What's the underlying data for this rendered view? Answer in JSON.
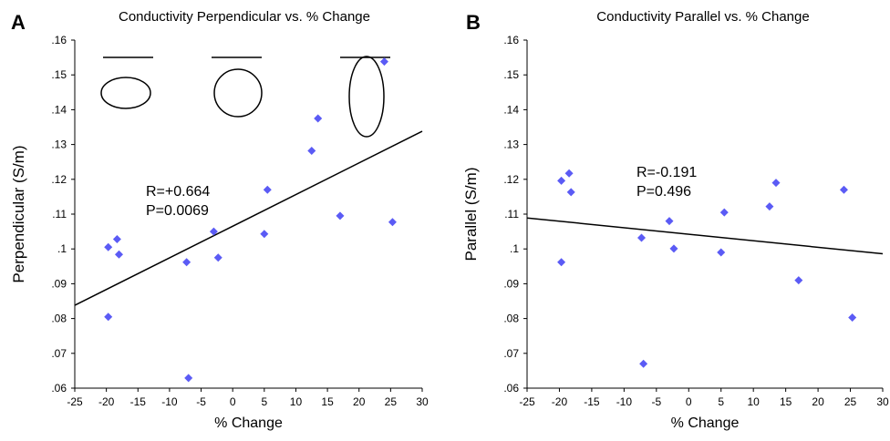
{
  "chart_data": [
    {
      "type": "scatter",
      "panel": "A",
      "title": "Conductivity Perpendicular vs. % Change",
      "xlabel": "% Change",
      "ylabel": "Perpendicular (S/m)",
      "xlim": [
        -25,
        30
      ],
      "ylim": [
        0.06,
        0.16
      ],
      "xticks": [
        -25,
        -20,
        -15,
        -10,
        -5,
        0,
        5,
        10,
        15,
        20,
        25,
        30
      ],
      "xtick_labels": [
        "-25",
        "-20",
        "-15",
        "-10",
        "-5",
        "0",
        "5",
        "10",
        "15",
        "20",
        "25",
        "30"
      ],
      "yticks": [
        0.06,
        0.07,
        0.08,
        0.09,
        0.1,
        0.11,
        0.12,
        0.13,
        0.14,
        0.15,
        0.16
      ],
      "ytick_labels": [
        ".06",
        ".07",
        ".08",
        ".09",
        ".1",
        ".11",
        ".12",
        ".13",
        ".14",
        ".15",
        ".16"
      ],
      "grid": false,
      "points": [
        {
          "x": -19.7,
          "y": 0.1005
        },
        {
          "x": -18.3,
          "y": 0.1028
        },
        {
          "x": -18.0,
          "y": 0.0984
        },
        {
          "x": -19.7,
          "y": 0.0805
        },
        {
          "x": -7.3,
          "y": 0.0962
        },
        {
          "x": -7.0,
          "y": 0.0629
        },
        {
          "x": -3.0,
          "y": 0.105
        },
        {
          "x": -2.3,
          "y": 0.0975
        },
        {
          "x": 5.0,
          "y": 0.1043
        },
        {
          "x": 5.5,
          "y": 0.117
        },
        {
          "x": 12.5,
          "y": 0.1282
        },
        {
          "x": 13.5,
          "y": 0.1375
        },
        {
          "x": 17.0,
          "y": 0.1095
        },
        {
          "x": 24.0,
          "y": 0.1538
        },
        {
          "x": 25.3,
          "y": 0.1077
        }
      ],
      "fit_line": {
        "x": [
          -25,
          30
        ],
        "y": [
          0.0838,
          0.1338
        ]
      },
      "annotations": [
        "R=+0.664",
        "P=0.0069"
      ],
      "point_color": "#5b5bf5"
    },
    {
      "type": "scatter",
      "panel": "B",
      "title": "Conductivity Parallel vs. % Change",
      "xlabel": "% Change",
      "ylabel": "Parallel (S/m)",
      "xlim": [
        -25,
        30
      ],
      "ylim": [
        0.06,
        0.16
      ],
      "xticks": [
        -25,
        -20,
        -15,
        -10,
        -5,
        0,
        5,
        10,
        15,
        20,
        25,
        30
      ],
      "xtick_labels": [
        "-25",
        "-20",
        "-15",
        "-10",
        "-5",
        "0",
        "5",
        "10",
        "15",
        "20",
        "25",
        "30"
      ],
      "yticks": [
        0.06,
        0.07,
        0.08,
        0.09,
        0.1,
        0.11,
        0.12,
        0.13,
        0.14,
        0.15,
        0.16
      ],
      "ytick_labels": [
        ".06",
        ".07",
        ".08",
        ".09",
        ".1",
        ".11",
        ".12",
        ".13",
        ".14",
        ".15",
        ".16"
      ],
      "grid": false,
      "points": [
        {
          "x": -19.7,
          "y": 0.1196
        },
        {
          "x": -18.5,
          "y": 0.1217
        },
        {
          "x": -18.2,
          "y": 0.1163
        },
        {
          "x": -19.7,
          "y": 0.0962
        },
        {
          "x": -7.3,
          "y": 0.1032
        },
        {
          "x": -7.0,
          "y": 0.067
        },
        {
          "x": -3.0,
          "y": 0.108
        },
        {
          "x": -2.3,
          "y": 0.1001
        },
        {
          "x": 5.0,
          "y": 0.099
        },
        {
          "x": 5.5,
          "y": 0.1105
        },
        {
          "x": 12.5,
          "y": 0.1122
        },
        {
          "x": 13.5,
          "y": 0.119
        },
        {
          "x": 17.0,
          "y": 0.091
        },
        {
          "x": 24.0,
          "y": 0.117
        },
        {
          "x": 25.3,
          "y": 0.0803
        }
      ],
      "fit_line": {
        "x": [
          -25,
          30
        ],
        "y": [
          0.1089,
          0.0986
        ]
      },
      "annotations": [
        "R=-0.191",
        "P=0.496"
      ],
      "point_color": "#5b5bf5"
    }
  ]
}
